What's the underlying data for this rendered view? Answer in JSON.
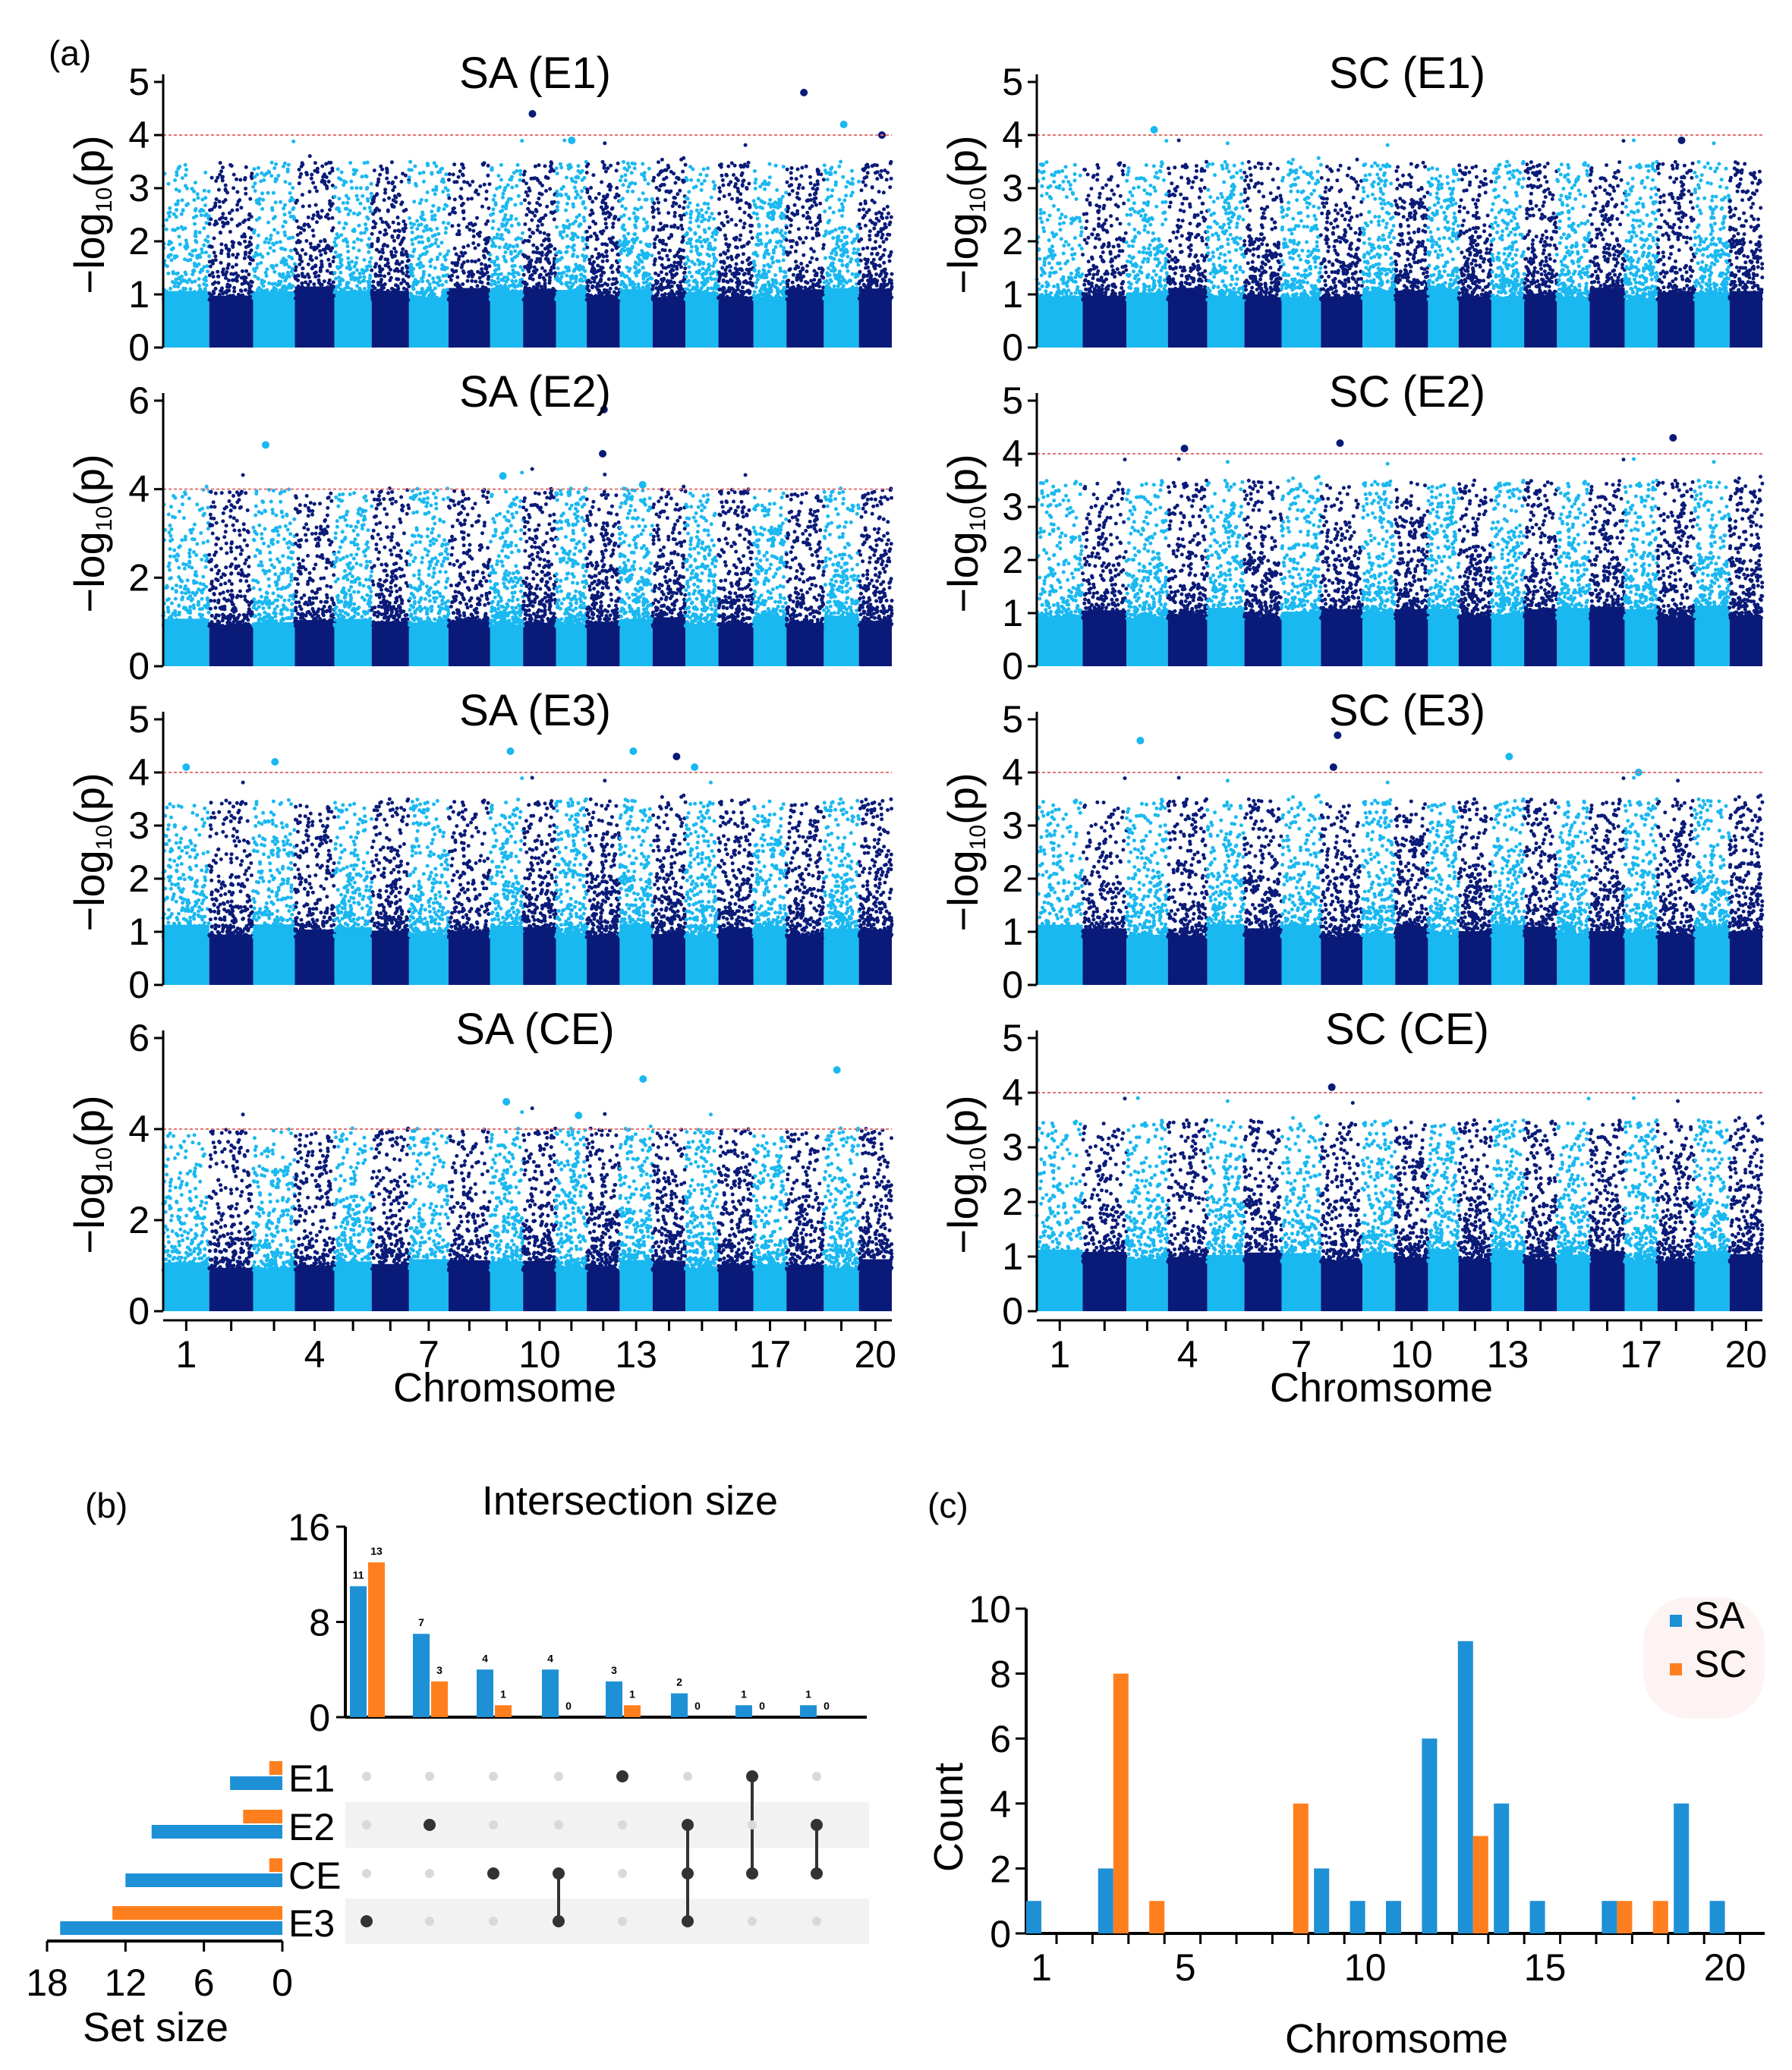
{
  "labels": {
    "a": "(a)",
    "b": "(b)",
    "c": "(c)",
    "chrom": "Chromsome",
    "ylab_main": "−log",
    "ylab_sub": "10",
    "ylab_p": "(p)",
    "set_size": "Set size",
    "intersection_size": "Intersection size",
    "count": "Count"
  },
  "colors": {
    "light": "#1AB8F0",
    "dark": "#0A1A78",
    "threshold": "#E57373",
    "sa": "#1E90D6",
    "sc": "#FF7F1E",
    "matrix_on": "#333333",
    "matrix_off": "#D9D9D9",
    "stripe": "#F2F2F2"
  },
  "chart_data": [
    {
      "type": "scatter",
      "id": "SA-E1",
      "title": "SA (E1)",
      "ylim": [
        0,
        5
      ],
      "yticks": [
        "0",
        "1",
        "2",
        "3",
        "4",
        "5"
      ],
      "threshold": 4,
      "chromosomes": 20,
      "xticks": [
        "1",
        "4",
        "7",
        "10",
        "13",
        "17",
        "20"
      ],
      "top_hits": [
        {
          "chr": 10,
          "y": 4.4
        },
        {
          "chr": 11,
          "y": 3.9
        },
        {
          "chr": 18,
          "y": 4.8
        },
        {
          "chr": 19,
          "y": 4.2
        },
        {
          "chr": 20,
          "y": 4.0
        }
      ]
    },
    {
      "type": "scatter",
      "id": "SC-E1",
      "title": "SC (E1)",
      "ylim": [
        0,
        5
      ],
      "yticks": [
        "0",
        "1",
        "2",
        "3",
        "4",
        "5"
      ],
      "threshold": 4,
      "chromosomes": 20,
      "xticks": [
        "1",
        "4",
        "7",
        "10",
        "13",
        "17",
        "20"
      ],
      "top_hits": [
        {
          "chr": 3,
          "y": 4.1
        },
        {
          "chr": 18,
          "y": 3.9
        }
      ]
    },
    {
      "type": "scatter",
      "id": "SA-E2",
      "title": "SA (E2)",
      "ylim": [
        0,
        6
      ],
      "yticks": [
        "0",
        "2",
        "4",
        "6"
      ],
      "threshold": 4,
      "chromosomes": 20,
      "xticks": [
        "1",
        "4",
        "7",
        "10",
        "13",
        "17",
        "20"
      ],
      "top_hits": [
        {
          "chr": 3,
          "y": 5.0
        },
        {
          "chr": 9,
          "y": 4.3
        },
        {
          "chr": 12,
          "y": 5.8
        },
        {
          "chr": 12,
          "y": 4.8
        },
        {
          "chr": 13,
          "y": 4.1
        }
      ]
    },
    {
      "type": "scatter",
      "id": "SC-E2",
      "title": "SC (E2)",
      "ylim": [
        0,
        5
      ],
      "yticks": [
        "0",
        "1",
        "2",
        "3",
        "4",
        "5"
      ],
      "threshold": 4,
      "chromosomes": 20,
      "xticks": [
        "1",
        "4",
        "7",
        "10",
        "13",
        "17",
        "20"
      ],
      "top_hits": [
        {
          "chr": 4,
          "y": 4.1
        },
        {
          "chr": 8,
          "y": 4.2
        },
        {
          "chr": 18,
          "y": 4.3
        }
      ]
    },
    {
      "type": "scatter",
      "id": "SA-E3",
      "title": "SA (E3)",
      "ylim": [
        0,
        5
      ],
      "yticks": [
        "0",
        "1",
        "2",
        "3",
        "4",
        "5"
      ],
      "threshold": 4,
      "chromosomes": 20,
      "xticks": [
        "1",
        "4",
        "7",
        "10",
        "13",
        "17",
        "20"
      ],
      "top_hits": [
        {
          "chr": 1,
          "y": 4.1
        },
        {
          "chr": 3,
          "y": 4.2
        },
        {
          "chr": 9,
          "y": 4.4
        },
        {
          "chr": 13,
          "y": 4.4
        },
        {
          "chr": 14,
          "y": 4.3
        },
        {
          "chr": 15,
          "y": 4.1
        }
      ]
    },
    {
      "type": "scatter",
      "id": "SC-E3",
      "title": "SC (E3)",
      "ylim": [
        0,
        5
      ],
      "yticks": [
        "0",
        "1",
        "2",
        "3",
        "4",
        "5"
      ],
      "threshold": 4,
      "chromosomes": 20,
      "xticks": [
        "1",
        "4",
        "7",
        "10",
        "13",
        "17",
        "20"
      ],
      "top_hits": [
        {
          "chr": 3,
          "y": 4.6
        },
        {
          "chr": 8,
          "y": 4.7
        },
        {
          "chr": 8,
          "y": 4.1
        },
        {
          "chr": 13,
          "y": 4.3
        },
        {
          "chr": 17,
          "y": 4.0
        }
      ]
    },
    {
      "type": "scatter",
      "id": "SA-CE",
      "title": "SA (CE)",
      "ylim": [
        0,
        6
      ],
      "yticks": [
        "0",
        "2",
        "4",
        "6"
      ],
      "threshold": 4,
      "chromosomes": 20,
      "xticks": [
        "1",
        "4",
        "7",
        "10",
        "13",
        "17",
        "20"
      ],
      "top_hits": [
        {
          "chr": 9,
          "y": 4.6
        },
        {
          "chr": 11,
          "y": 4.3
        },
        {
          "chr": 13,
          "y": 5.1
        },
        {
          "chr": 19,
          "y": 5.3
        }
      ]
    },
    {
      "type": "scatter",
      "id": "SC-CE",
      "title": "SC (CE)",
      "ylim": [
        0,
        5
      ],
      "yticks": [
        "0",
        "1",
        "2",
        "3",
        "4",
        "5"
      ],
      "threshold": 4,
      "chromosomes": 20,
      "xticks": [
        "1",
        "4",
        "7",
        "10",
        "13",
        "17",
        "20"
      ],
      "top_hits": [
        {
          "chr": 8,
          "y": 4.1
        }
      ]
    },
    {
      "type": "bar",
      "id": "upset-intersections",
      "title": "Intersection size",
      "ylim": [
        0,
        16
      ],
      "yticks": [
        "0",
        "8",
        "16"
      ],
      "series": [
        {
          "name": "SA",
          "values": [
            11,
            7,
            4,
            4,
            3,
            2,
            1,
            1
          ]
        },
        {
          "name": "SC",
          "values": [
            13,
            3,
            1,
            0,
            1,
            0,
            0,
            0
          ]
        }
      ],
      "sets": [
        "E1",
        "E2",
        "CE",
        "E3"
      ],
      "membership": [
        [
          "E3"
        ],
        [
          "E2"
        ],
        [
          "CE"
        ],
        [
          "CE",
          "E3"
        ],
        [
          "E1"
        ],
        [
          "E2",
          "CE",
          "E3"
        ],
        [
          "E1",
          "CE"
        ],
        [
          "E2",
          "CE"
        ]
      ]
    },
    {
      "type": "bar",
      "id": "upset-set-size",
      "xlabel": "Set size",
      "xticks": [
        "18",
        "12",
        "6",
        "0"
      ],
      "xlim": [
        0,
        18
      ],
      "categories": [
        "E1",
        "E2",
        "CE",
        "E3"
      ],
      "series": [
        {
          "name": "SA",
          "values": [
            4,
            10,
            12,
            17
          ]
        },
        {
          "name": "SC",
          "values": [
            1,
            3,
            1,
            13
          ]
        }
      ]
    },
    {
      "type": "bar",
      "id": "chromosome-count",
      "xlabel": "Chromsome",
      "ylabel": "Count",
      "ylim": [
        0,
        10
      ],
      "yticks": [
        "0",
        "2",
        "4",
        "6",
        "8",
        "10"
      ],
      "xticks": [
        "1",
        "5",
        "10",
        "15",
        "20"
      ],
      "categories": [
        1,
        2,
        3,
        4,
        5,
        6,
        7,
        8,
        9,
        10,
        11,
        12,
        13,
        14,
        15,
        16,
        17,
        18,
        19,
        20
      ],
      "series": [
        {
          "name": "SA",
          "values": [
            1,
            0,
            2,
            0,
            0,
            0,
            0,
            0,
            2,
            1,
            1,
            6,
            9,
            4,
            1,
            0,
            1,
            0,
            4,
            1
          ]
        },
        {
          "name": "SC",
          "values": [
            0,
            0,
            8,
            1,
            0,
            0,
            0,
            4,
            0,
            0,
            0,
            0,
            3,
            0,
            0,
            0,
            1,
            1,
            0,
            0
          ]
        }
      ],
      "legend": "top-right"
    }
  ]
}
